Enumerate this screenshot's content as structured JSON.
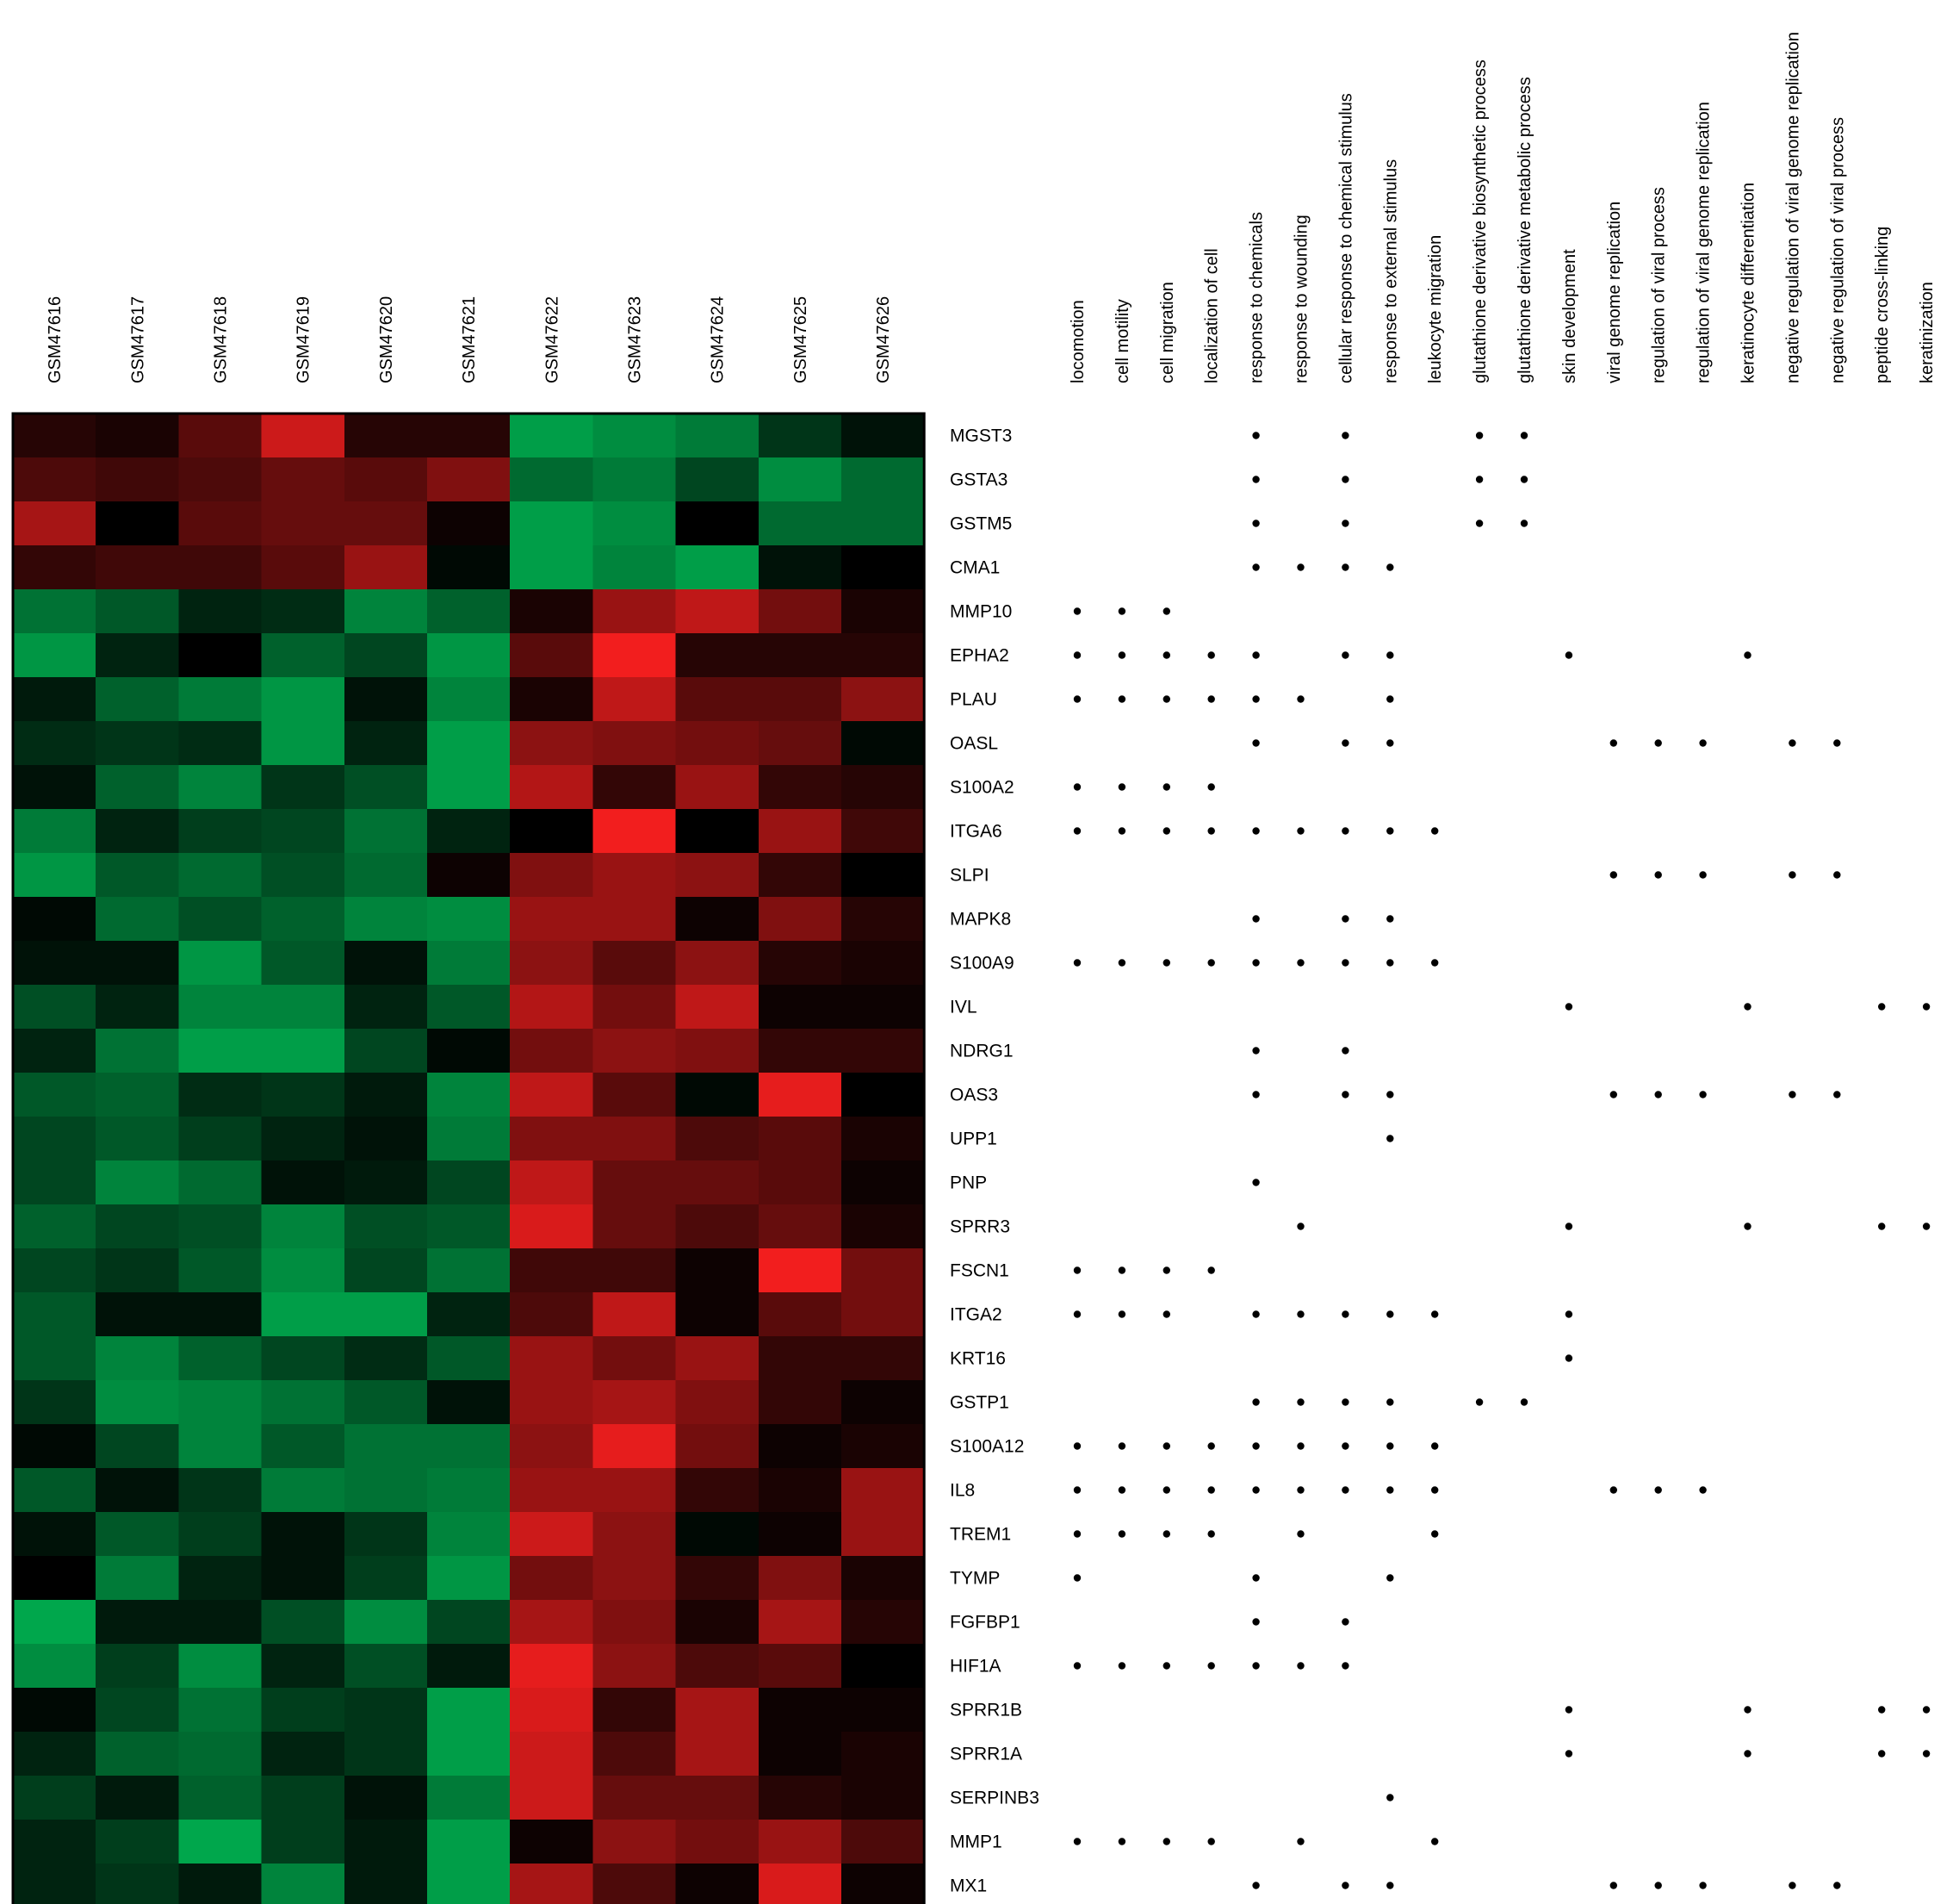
{
  "chart_data": {
    "type": "heatmap",
    "title": "",
    "colormap": {
      "low": "#00b050",
      "mid": "#000000",
      "high": "#ff2020"
    },
    "samples": [
      "GSM47616",
      "GSM47617",
      "GSM47618",
      "GSM47619",
      "GSM47620",
      "GSM47621",
      "GSM47622",
      "GSM47623",
      "GSM47624",
      "GSM47625",
      "GSM47626"
    ],
    "genes": [
      "MGST3",
      "GSTA3",
      "GSTM5",
      "CMA1",
      "MMP10",
      "EPHA2",
      "PLAU",
      "OASL",
      "S100A2",
      "ITGA6",
      "SLPI",
      "MAPK8",
      "S100A9",
      "IVL",
      "NDRG1",
      "OAS3",
      "UPP1",
      "PNP",
      "SPRR3",
      "FSCN1",
      "ITGA2",
      "KRT16",
      "GSTP1",
      "S100A12",
      "IL8",
      "TREM1",
      "TYMP",
      "FGFBP1",
      "HIF1A",
      "SPRR1B",
      "SPRR1A",
      "SERPINB3",
      "MMP1",
      "MX1"
    ],
    "values": [
      [
        0.15,
        0.1,
        0.35,
        0.8,
        0.15,
        0.15,
        -0.9,
        -0.8,
        -0.7,
        -0.3,
        -0.1
      ],
      [
        0.3,
        0.25,
        0.3,
        0.4,
        0.35,
        0.5,
        -0.6,
        -0.7,
        -0.4,
        -0.8,
        -0.6
      ],
      [
        0.65,
        0.0,
        0.35,
        0.4,
        0.4,
        0.05,
        -0.9,
        -0.8,
        0.0,
        -0.6,
        -0.6
      ],
      [
        0.2,
        0.25,
        0.25,
        0.35,
        0.6,
        -0.05,
        -0.9,
        -0.75,
        -0.9,
        -0.1,
        0.0
      ],
      [
        -0.65,
        -0.5,
        -0.2,
        -0.25,
        -0.75,
        -0.55,
        0.1,
        0.6,
        0.75,
        0.45,
        0.1
      ],
      [
        -0.85,
        -0.2,
        0.0,
        -0.55,
        -0.4,
        -0.85,
        0.35,
        0.95,
        0.15,
        0.15,
        0.15
      ],
      [
        -0.15,
        -0.55,
        -0.7,
        -0.85,
        -0.1,
        -0.75,
        0.1,
        0.75,
        0.35,
        0.35,
        0.55
      ],
      [
        -0.25,
        -0.3,
        -0.25,
        -0.85,
        -0.2,
        -0.9,
        0.55,
        0.5,
        0.45,
        0.4,
        -0.05
      ],
      [
        -0.1,
        -0.55,
        -0.75,
        -0.3,
        -0.45,
        -0.9,
        0.7,
        0.2,
        0.6,
        0.2,
        0.15
      ],
      [
        -0.7,
        -0.2,
        -0.35,
        -0.4,
        -0.65,
        -0.2,
        0.0,
        0.95,
        0.0,
        0.6,
        0.25
      ],
      [
        -0.85,
        -0.5,
        -0.6,
        -0.45,
        -0.6,
        0.05,
        0.5,
        0.6,
        0.55,
        0.2,
        0.0
      ],
      [
        -0.05,
        -0.6,
        -0.45,
        -0.55,
        -0.75,
        -0.8,
        0.6,
        0.6,
        0.05,
        0.5,
        0.15
      ],
      [
        -0.1,
        -0.1,
        -0.85,
        -0.5,
        -0.1,
        -0.7,
        0.55,
        0.35,
        0.55,
        0.15,
        0.1
      ],
      [
        -0.45,
        -0.2,
        -0.75,
        -0.75,
        -0.2,
        -0.5,
        0.7,
        0.45,
        0.75,
        0.05,
        0.05
      ],
      [
        -0.2,
        -0.65,
        -0.9,
        -0.9,
        -0.4,
        -0.05,
        0.45,
        0.55,
        0.5,
        0.2,
        0.2
      ],
      [
        -0.5,
        -0.55,
        -0.25,
        -0.3,
        -0.15,
        -0.75,
        0.75,
        0.35,
        -0.05,
        0.9,
        0.0
      ],
      [
        -0.4,
        -0.5,
        -0.35,
        -0.2,
        -0.1,
        -0.7,
        0.5,
        0.5,
        0.3,
        0.35,
        0.1
      ],
      [
        -0.4,
        -0.75,
        -0.6,
        -0.1,
        -0.15,
        -0.4,
        0.75,
        0.4,
        0.4,
        0.35,
        0.05
      ],
      [
        -0.55,
        -0.4,
        -0.45,
        -0.75,
        -0.45,
        -0.5,
        0.85,
        0.4,
        0.3,
        0.4,
        0.1
      ],
      [
        -0.4,
        -0.3,
        -0.5,
        -0.8,
        -0.4,
        -0.65,
        0.25,
        0.25,
        0.05,
        0.95,
        0.45
      ],
      [
        -0.5,
        -0.1,
        -0.1,
        -0.9,
        -0.9,
        -0.2,
        0.3,
        0.75,
        0.05,
        0.35,
        0.45
      ],
      [
        -0.5,
        -0.75,
        -0.55,
        -0.4,
        -0.25,
        -0.5,
        0.6,
        0.45,
        0.6,
        0.2,
        0.2
      ],
      [
        -0.3,
        -0.8,
        -0.75,
        -0.65,
        -0.5,
        -0.1,
        0.6,
        0.65,
        0.5,
        0.2,
        0.05
      ],
      [
        -0.05,
        -0.4,
        -0.75,
        -0.5,
        -0.65,
        -0.65,
        0.55,
        0.9,
        0.45,
        0.05,
        0.1
      ],
      [
        -0.5,
        -0.1,
        -0.3,
        -0.7,
        -0.65,
        -0.7,
        0.6,
        0.6,
        0.2,
        0.1,
        0.6
      ],
      [
        -0.1,
        -0.5,
        -0.35,
        -0.1,
        -0.3,
        -0.75,
        0.8,
        0.55,
        -0.05,
        0.05,
        0.6
      ],
      [
        0.0,
        -0.7,
        -0.2,
        -0.1,
        -0.35,
        -0.85,
        0.45,
        0.55,
        0.2,
        0.5,
        0.1
      ],
      [
        -0.95,
        -0.15,
        -0.15,
        -0.45,
        -0.8,
        -0.4,
        0.65,
        0.5,
        0.1,
        0.65,
        0.15
      ],
      [
        -0.8,
        -0.35,
        -0.8,
        -0.2,
        -0.45,
        -0.15,
        0.9,
        0.55,
        0.3,
        0.35,
        0.0
      ],
      [
        -0.05,
        -0.4,
        -0.65,
        -0.35,
        -0.3,
        -0.9,
        0.85,
        0.2,
        0.65,
        0.05,
        0.05
      ],
      [
        -0.2,
        -0.55,
        -0.6,
        -0.2,
        -0.3,
        -0.9,
        0.8,
        0.3,
        0.65,
        0.05,
        0.1
      ],
      [
        -0.35,
        -0.15,
        -0.55,
        -0.35,
        -0.1,
        -0.7,
        0.8,
        0.4,
        0.4,
        0.15,
        0.1
      ],
      [
        -0.2,
        -0.35,
        -0.95,
        -0.35,
        -0.15,
        -0.9,
        0.05,
        0.55,
        0.45,
        0.6,
        0.3
      ],
      [
        -0.2,
        -0.3,
        -0.15,
        -0.75,
        -0.15,
        -0.9,
        0.65,
        0.3,
        0.05,
        0.85,
        0.05
      ]
    ],
    "go_terms": [
      "locomotion",
      "cell motility",
      "cell migration",
      "localization of cell",
      "response to chemicals",
      "response to wounding",
      "cellular response to chemical stimulus",
      "response to external stimulus",
      "leukocyte migration",
      "glutathione derivative biosynthetic process",
      "glutathione derivative metabolic process",
      "skin development",
      "viral genome replication",
      "regulation of viral process",
      "regulation of viral genome replication",
      "keratinocyte differentiation",
      "negative regulation of viral genome replication",
      "negative regulation of viral process",
      "peptide cross-linking",
      "keratinization"
    ],
    "annotations": [
      [
        0,
        0,
        0,
        0,
        1,
        0,
        1,
        0,
        0,
        1,
        1,
        0,
        0,
        0,
        0,
        0,
        0,
        0,
        0,
        0
      ],
      [
        0,
        0,
        0,
        0,
        1,
        0,
        1,
        0,
        0,
        1,
        1,
        0,
        0,
        0,
        0,
        0,
        0,
        0,
        0,
        0
      ],
      [
        0,
        0,
        0,
        0,
        1,
        0,
        1,
        0,
        0,
        1,
        1,
        0,
        0,
        0,
        0,
        0,
        0,
        0,
        0,
        0
      ],
      [
        0,
        0,
        0,
        0,
        1,
        1,
        1,
        1,
        0,
        0,
        0,
        0,
        0,
        0,
        0,
        0,
        0,
        0,
        0,
        0
      ],
      [
        1,
        1,
        1,
        0,
        0,
        0,
        0,
        0,
        0,
        0,
        0,
        0,
        0,
        0,
        0,
        0,
        0,
        0,
        0,
        0
      ],
      [
        1,
        1,
        1,
        1,
        1,
        0,
        1,
        1,
        0,
        0,
        0,
        1,
        0,
        0,
        0,
        1,
        0,
        0,
        0,
        0
      ],
      [
        1,
        1,
        1,
        1,
        1,
        1,
        0,
        1,
        0,
        0,
        0,
        0,
        0,
        0,
        0,
        0,
        0,
        0,
        0,
        0
      ],
      [
        0,
        0,
        0,
        0,
        1,
        0,
        1,
        1,
        0,
        0,
        0,
        0,
        1,
        1,
        1,
        0,
        1,
        1,
        0,
        0
      ],
      [
        1,
        1,
        1,
        1,
        0,
        0,
        0,
        0,
        0,
        0,
        0,
        0,
        0,
        0,
        0,
        0,
        0,
        0,
        0,
        0
      ],
      [
        1,
        1,
        1,
        1,
        1,
        1,
        1,
        1,
        1,
        0,
        0,
        0,
        0,
        0,
        0,
        0,
        0,
        0,
        0,
        0
      ],
      [
        0,
        0,
        0,
        0,
        0,
        0,
        0,
        0,
        0,
        0,
        0,
        0,
        1,
        1,
        1,
        0,
        1,
        1,
        0,
        0
      ],
      [
        0,
        0,
        0,
        0,
        1,
        0,
        1,
        1,
        0,
        0,
        0,
        0,
        0,
        0,
        0,
        0,
        0,
        0,
        0,
        0
      ],
      [
        1,
        1,
        1,
        1,
        1,
        1,
        1,
        1,
        1,
        0,
        0,
        0,
        0,
        0,
        0,
        0,
        0,
        0,
        0,
        0
      ],
      [
        0,
        0,
        0,
        0,
        0,
        0,
        0,
        0,
        0,
        0,
        0,
        1,
        0,
        0,
        0,
        1,
        0,
        0,
        1,
        1
      ],
      [
        0,
        0,
        0,
        0,
        1,
        0,
        1,
        0,
        0,
        0,
        0,
        0,
        0,
        0,
        0,
        0,
        0,
        0,
        0,
        0
      ],
      [
        0,
        0,
        0,
        0,
        1,
        0,
        1,
        1,
        0,
        0,
        0,
        0,
        1,
        1,
        1,
        0,
        1,
        1,
        0,
        0
      ],
      [
        0,
        0,
        0,
        0,
        0,
        0,
        0,
        1,
        0,
        0,
        0,
        0,
        0,
        0,
        0,
        0,
        0,
        0,
        0,
        0
      ],
      [
        0,
        0,
        0,
        0,
        1,
        0,
        0,
        0,
        0,
        0,
        0,
        0,
        0,
        0,
        0,
        0,
        0,
        0,
        0,
        0
      ],
      [
        0,
        0,
        0,
        0,
        0,
        1,
        0,
        0,
        0,
        0,
        0,
        1,
        0,
        0,
        0,
        1,
        0,
        0,
        1,
        1
      ],
      [
        1,
        1,
        1,
        1,
        0,
        0,
        0,
        0,
        0,
        0,
        0,
        0,
        0,
        0,
        0,
        0,
        0,
        0,
        0,
        0
      ],
      [
        1,
        1,
        1,
        0,
        1,
        1,
        1,
        1,
        1,
        0,
        0,
        1,
        0,
        0,
        0,
        0,
        0,
        0,
        0,
        0
      ],
      [
        0,
        0,
        0,
        0,
        0,
        0,
        0,
        0,
        0,
        0,
        0,
        1,
        0,
        0,
        0,
        0,
        0,
        0,
        0,
        0
      ],
      [
        0,
        0,
        0,
        0,
        1,
        1,
        1,
        1,
        0,
        1,
        1,
        0,
        0,
        0,
        0,
        0,
        0,
        0,
        0,
        0
      ],
      [
        1,
        1,
        1,
        1,
        1,
        1,
        1,
        1,
        1,
        0,
        0,
        0,
        0,
        0,
        0,
        0,
        0,
        0,
        0,
        0
      ],
      [
        1,
        1,
        1,
        1,
        1,
        1,
        1,
        1,
        1,
        0,
        0,
        0,
        1,
        1,
        1,
        0,
        0,
        0,
        0,
        0
      ],
      [
        1,
        1,
        1,
        1,
        0,
        1,
        0,
        0,
        1,
        0,
        0,
        0,
        0,
        0,
        0,
        0,
        0,
        0,
        0,
        0
      ],
      [
        1,
        0,
        0,
        0,
        1,
        0,
        0,
        1,
        0,
        0,
        0,
        0,
        0,
        0,
        0,
        0,
        0,
        0,
        0,
        0
      ],
      [
        0,
        0,
        0,
        0,
        1,
        0,
        1,
        0,
        0,
        0,
        0,
        0,
        0,
        0,
        0,
        0,
        0,
        0,
        0,
        0
      ],
      [
        1,
        1,
        1,
        1,
        1,
        1,
        1,
        0,
        0,
        0,
        0,
        0,
        0,
        0,
        0,
        0,
        0,
        0,
        0,
        0
      ],
      [
        0,
        0,
        0,
        0,
        0,
        0,
        0,
        0,
        0,
        0,
        0,
        1,
        0,
        0,
        0,
        1,
        0,
        0,
        1,
        1
      ],
      [
        0,
        0,
        0,
        0,
        0,
        0,
        0,
        0,
        0,
        0,
        0,
        1,
        0,
        0,
        0,
        1,
        0,
        0,
        1,
        1
      ],
      [
        0,
        0,
        0,
        0,
        0,
        0,
        0,
        1,
        0,
        0,
        0,
        0,
        0,
        0,
        0,
        0,
        0,
        0,
        0,
        0
      ],
      [
        1,
        1,
        1,
        1,
        0,
        1,
        0,
        0,
        1,
        0,
        0,
        0,
        0,
        0,
        0,
        0,
        0,
        0,
        0,
        0
      ],
      [
        0,
        0,
        0,
        0,
        1,
        0,
        1,
        1,
        0,
        0,
        0,
        0,
        1,
        1,
        1,
        0,
        1,
        1,
        0,
        0
      ]
    ]
  }
}
